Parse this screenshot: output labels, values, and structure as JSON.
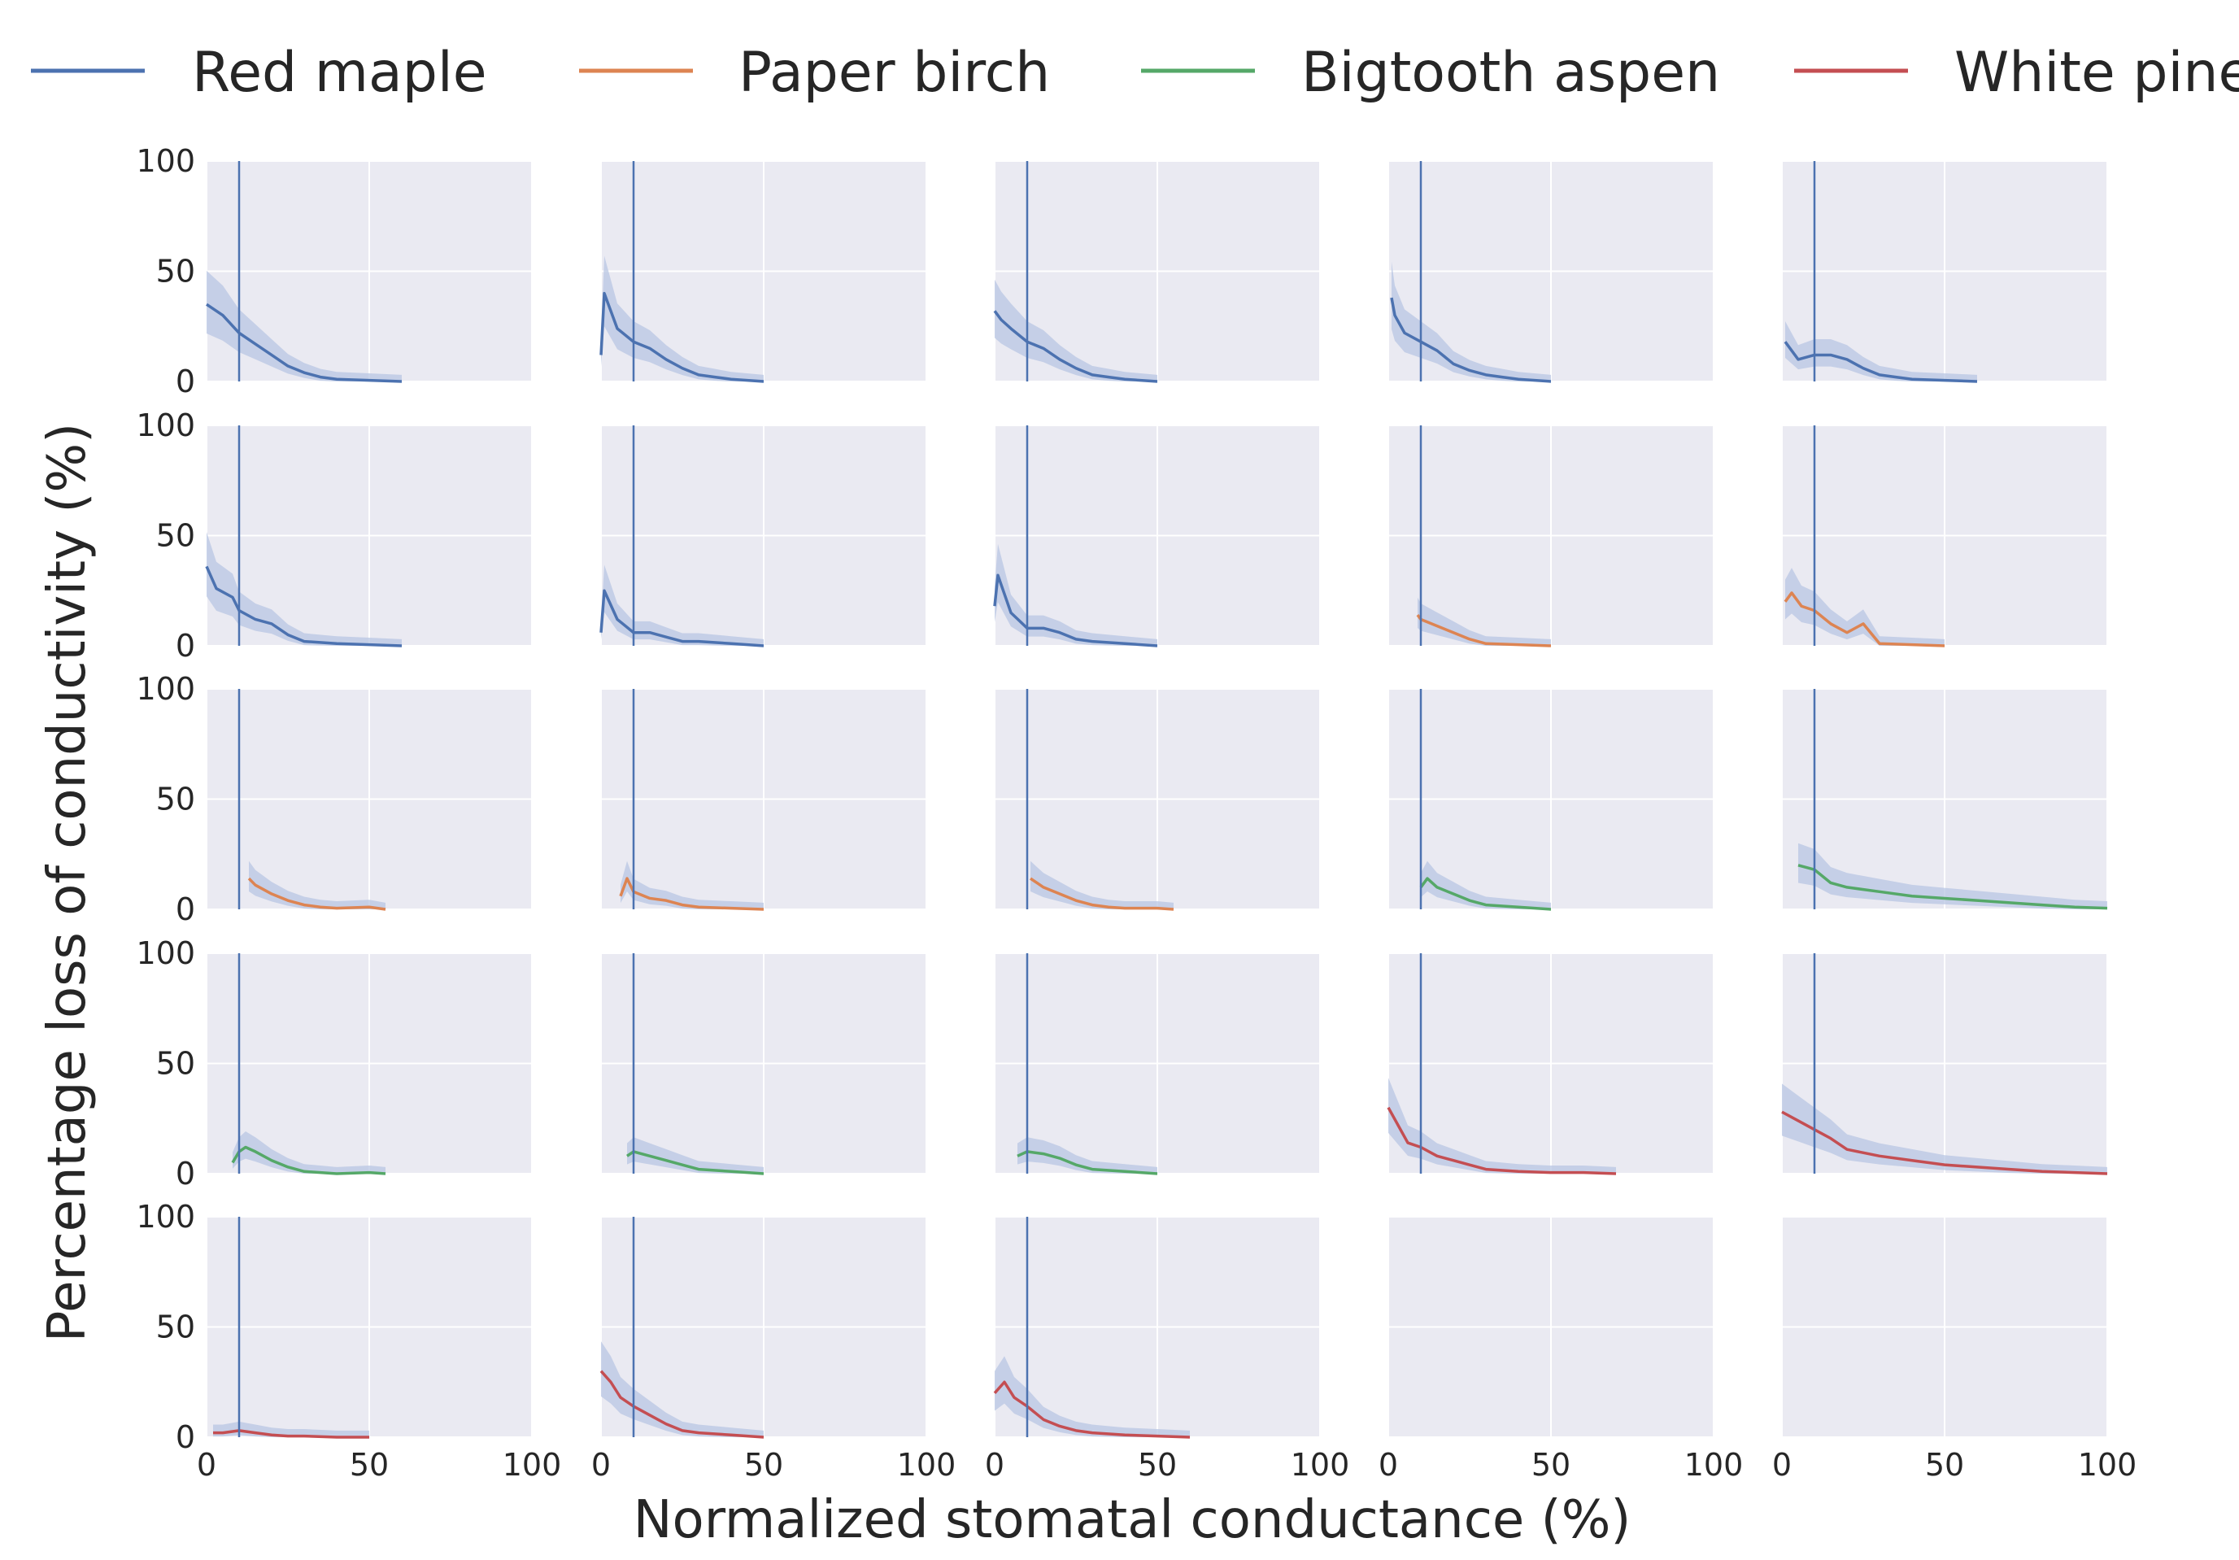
{
  "chart_data": {
    "type": "line",
    "layout": {
      "rows": 5,
      "cols": 5
    },
    "xlabel": "Normalized stomatal conductance (%)",
    "ylabel": "Percentage loss of conductivity (%)",
    "xlim": [
      0,
      100
    ],
    "ylim": [
      0,
      100
    ],
    "xticks": [
      "0",
      "50",
      "100"
    ],
    "yticks": [
      "0",
      "50",
      "100"
    ],
    "grid": true,
    "legend_position": "top",
    "background_color": "#eaeaf2",
    "grid_color": "#ffffff",
    "band_color": "#b8c5e3",
    "reference_line": {
      "x": 10,
      "color": "#4c72b0"
    },
    "legend": [
      {
        "name": "Red maple",
        "color": "#4c72b0"
      },
      {
        "name": "Paper birch",
        "color": "#dd8452"
      },
      {
        "name": "Bigtooth aspen",
        "color": "#55a868"
      },
      {
        "name": "White pine",
        "color": "#c44e52"
      }
    ],
    "panels": [
      {
        "series": "Red maple",
        "color": "#4c72b0",
        "x": [
          0,
          5,
          10,
          15,
          20,
          25,
          30,
          35,
          40,
          50,
          60
        ],
        "y": [
          35,
          30,
          22,
          17,
          12,
          7,
          4,
          2,
          1,
          0.5,
          0
        ]
      },
      {
        "series": "Red maple",
        "color": "#4c72b0",
        "x": [
          0,
          1,
          5,
          10,
          15,
          20,
          25,
          30,
          35,
          40,
          50
        ],
        "y": [
          12,
          40,
          24,
          18,
          15,
          10,
          6,
          3,
          2,
          1,
          0
        ]
      },
      {
        "series": "Red maple",
        "color": "#4c72b0",
        "x": [
          0,
          2,
          5,
          10,
          15,
          20,
          25,
          30,
          35,
          40,
          50
        ],
        "y": [
          32,
          28,
          24,
          18,
          15,
          10,
          6,
          3,
          2,
          1,
          0
        ]
      },
      {
        "series": "Red maple",
        "color": "#4c72b0",
        "x": [
          1,
          2,
          5,
          10,
          15,
          20,
          25,
          30,
          35,
          40,
          50
        ],
        "y": [
          38,
          30,
          22,
          18,
          14,
          8,
          5,
          3,
          2,
          1,
          0
        ]
      },
      {
        "series": "Red maple",
        "color": "#4c72b0",
        "x": [
          1,
          5,
          10,
          15,
          20,
          25,
          30,
          35,
          40,
          50,
          60
        ],
        "y": [
          18,
          10,
          12,
          12,
          10,
          6,
          3,
          2,
          1,
          0.5,
          0
        ]
      },
      {
        "series": "Red maple",
        "color": "#4c72b0",
        "x": [
          0,
          3,
          8,
          10,
          15,
          20,
          25,
          30,
          40,
          50,
          60
        ],
        "y": [
          36,
          26,
          22,
          16,
          12,
          10,
          5,
          2,
          1,
          0.5,
          0
        ]
      },
      {
        "series": "Red maple",
        "color": "#4c72b0",
        "x": [
          0,
          1,
          5,
          10,
          15,
          20,
          25,
          30,
          40,
          50
        ],
        "y": [
          6,
          25,
          12,
          6,
          6,
          4,
          2,
          2,
          1,
          0
        ]
      },
      {
        "series": "Red maple",
        "color": "#4c72b0",
        "x": [
          0,
          1,
          5,
          10,
          15,
          20,
          25,
          30,
          40,
          50
        ],
        "y": [
          18,
          32,
          15,
          8,
          8,
          6,
          3,
          2,
          1,
          0
        ]
      },
      {
        "series": "Paper birch",
        "color": "#dd8452",
        "x": [
          9,
          10,
          15,
          20,
          25,
          30,
          40,
          50
        ],
        "y": [
          14,
          12,
          9,
          6,
          3,
          1,
          0.5,
          0
        ]
      },
      {
        "series": "Paper birch",
        "color": "#dd8452",
        "x": [
          1,
          3,
          6,
          10,
          15,
          20,
          25,
          30,
          40,
          50
        ],
        "y": [
          20,
          24,
          18,
          16,
          10,
          6,
          10,
          1,
          0.5,
          0
        ]
      },
      {
        "series": "Paper birch",
        "color": "#dd8452",
        "x": [
          13,
          15,
          20,
          25,
          30,
          35,
          40,
          50,
          55
        ],
        "y": [
          14,
          11,
          7,
          4,
          2,
          1,
          0.5,
          1,
          0
        ]
      },
      {
        "series": "Paper birch",
        "color": "#dd8452",
        "x": [
          6,
          8,
          10,
          15,
          20,
          25,
          30,
          40,
          50
        ],
        "y": [
          6,
          14,
          8,
          5,
          4,
          2,
          1,
          0.5,
          0
        ]
      },
      {
        "series": "Paper birch",
        "color": "#dd8452",
        "x": [
          11,
          13,
          15,
          20,
          25,
          30,
          35,
          40,
          50,
          55
        ],
        "y": [
          14,
          12,
          10,
          7,
          4,
          2,
          1,
          0.5,
          0.5,
          0
        ]
      },
      {
        "series": "Bigtooth aspen",
        "color": "#55a868",
        "x": [
          10,
          12,
          15,
          20,
          25,
          30,
          40,
          50
        ],
        "y": [
          10,
          14,
          10,
          7,
          4,
          2,
          1,
          0
        ]
      },
      {
        "series": "Bigtooth aspen",
        "color": "#55a868",
        "x": [
          5,
          10,
          15,
          20,
          30,
          40,
          50,
          60,
          70,
          80,
          90,
          100
        ],
        "y": [
          20,
          18,
          12,
          10,
          8,
          6,
          5,
          4,
          3,
          2,
          1,
          0.5
        ]
      },
      {
        "series": "Bigtooth aspen",
        "color": "#55a868",
        "x": [
          8,
          10,
          12,
          15,
          20,
          25,
          30,
          35,
          40,
          50,
          55
        ],
        "y": [
          5,
          10,
          12,
          10,
          6,
          3,
          1,
          0.5,
          0,
          0.5,
          0
        ]
      },
      {
        "series": "Bigtooth aspen",
        "color": "#55a868",
        "x": [
          8,
          10,
          15,
          20,
          25,
          30,
          40,
          50
        ],
        "y": [
          8,
          10,
          8,
          6,
          4,
          2,
          1,
          0
        ]
      },
      {
        "series": "Bigtooth aspen",
        "color": "#55a868",
        "x": [
          7,
          10,
          15,
          20,
          25,
          30,
          40,
          50
        ],
        "y": [
          8,
          10,
          9,
          7,
          4,
          2,
          1,
          0
        ]
      },
      {
        "series": "White pine",
        "color": "#c44e52",
        "x": [
          0,
          3,
          6,
          10,
          15,
          20,
          25,
          30,
          40,
          50,
          60,
          70
        ],
        "y": [
          30,
          22,
          14,
          12,
          8,
          6,
          4,
          2,
          1,
          0.5,
          0.5,
          0
        ]
      },
      {
        "series": "White pine",
        "color": "#c44e52",
        "x": [
          0,
          5,
          10,
          15,
          20,
          30,
          40,
          50,
          60,
          70,
          80,
          90,
          100
        ],
        "y": [
          28,
          24,
          20,
          16,
          11,
          8,
          6,
          4,
          3,
          2,
          1,
          0.5,
          0
        ]
      },
      {
        "series": "White pine",
        "color": "#c44e52",
        "x": [
          2,
          5,
          10,
          15,
          20,
          25,
          30,
          40,
          50
        ],
        "y": [
          2,
          2,
          3,
          2,
          1,
          0.5,
          0.5,
          0,
          0
        ]
      },
      {
        "series": "White pine",
        "color": "#c44e52",
        "x": [
          0,
          3,
          6,
          10,
          15,
          20,
          25,
          30,
          40,
          50
        ],
        "y": [
          30,
          25,
          18,
          14,
          10,
          6,
          3,
          2,
          1,
          0
        ]
      },
      {
        "series": "White pine",
        "color": "#c44e52",
        "x": [
          0,
          3,
          6,
          10,
          15,
          20,
          25,
          30,
          40,
          50,
          60
        ],
        "y": [
          20,
          25,
          18,
          14,
          8,
          5,
          3,
          2,
          1,
          0.5,
          0
        ]
      },
      null,
      null
    ]
  }
}
